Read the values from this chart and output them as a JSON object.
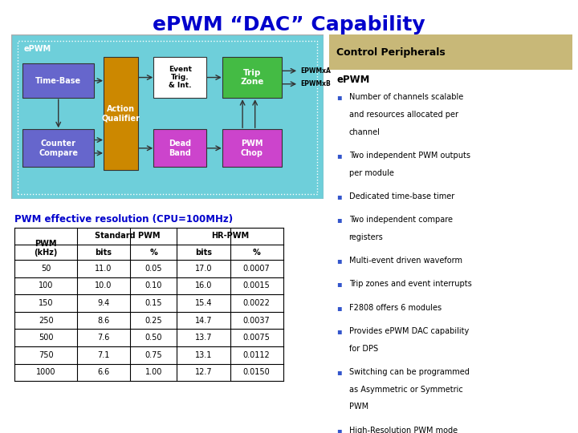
{
  "title": "ePWM “DAC” Capability",
  "title_color": "#0000cc",
  "bg_color": "#ffffff",
  "diagram_bg_top": "#5ec8d8",
  "diagram_bg_bot": "#80e0e8",
  "epwm_label": "ePWM",
  "table_title": "PWM effective resolution (CPU=100MHz)",
  "table_title_color": "#0000cc",
  "table_data": [
    [
      50,
      11.0,
      0.05,
      17.0,
      0.0007
    ],
    [
      100,
      10.0,
      0.1,
      16.0,
      0.0015
    ],
    [
      150,
      9.4,
      0.15,
      15.4,
      0.0022
    ],
    [
      250,
      8.6,
      0.25,
      14.7,
      0.0037
    ],
    [
      500,
      7.6,
      0.5,
      13.7,
      0.0075
    ],
    [
      750,
      7.1,
      0.75,
      13.1,
      0.0112
    ],
    [
      1000,
      6.6,
      1.0,
      12.7,
      0.015
    ]
  ],
  "right_panel_header": "Control Peripherals",
  "right_panel_header_bg": "#c8b878",
  "right_panel_title": "ePWM",
  "right_panel_bullets": [
    "Number of channels scalable\nand resources allocated per\nchannel",
    "Two independent PWM outputs\nper module",
    "Dedicated time-base timer",
    "Two independent compare\nregisters",
    "Multi-event driven waveform",
    "Trip zones and event interrupts",
    "F2808 offers 6 modules",
    "Provides ePWM DAC capability\nfor DPS",
    "Switching can be programmed\nas Asymmetric or Symmetric\nPWM",
    "High-Resolution PWM mode"
  ]
}
